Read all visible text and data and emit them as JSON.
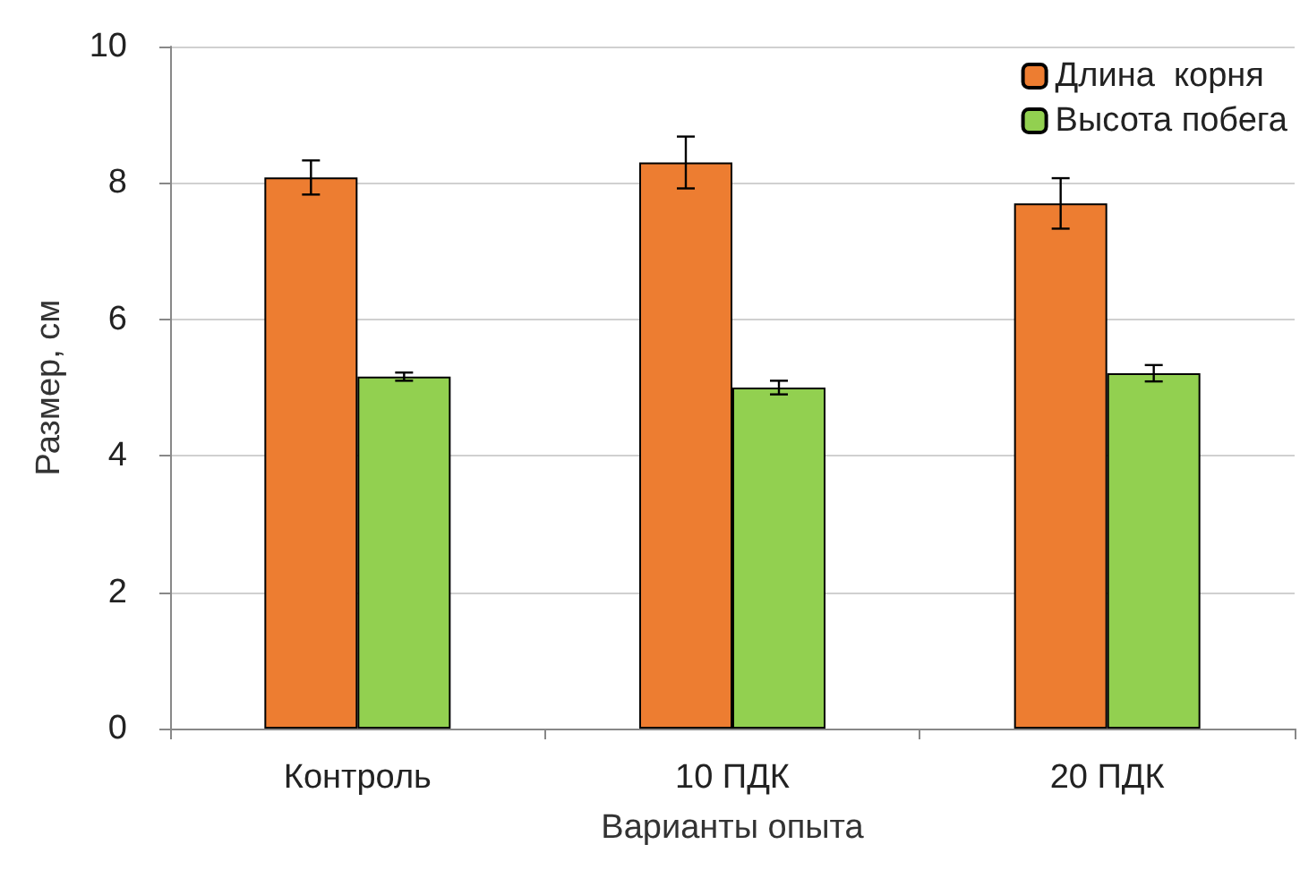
{
  "chart_data": {
    "type": "bar",
    "xlabel": "Варианты опыта",
    "ylabel": "Размер, см",
    "categories": [
      "Контроль",
      "10 ПДК",
      "20 ПДК"
    ],
    "series": [
      {
        "name": "Длина  корня",
        "color": "#ed7d31",
        "values": [
          8.08,
          8.3,
          7.7
        ],
        "errors": [
          0.25,
          0.38,
          0.37
        ]
      },
      {
        "name": "Высота побега",
        "color": "#92d050",
        "values": [
          5.16,
          5.0,
          5.21
        ],
        "errors": [
          0.06,
          0.1,
          0.12
        ]
      }
    ],
    "ylim": [
      0,
      10
    ],
    "yticks": [
      0,
      2,
      4,
      6,
      8,
      10
    ],
    "grid": "y",
    "legend": "top right"
  }
}
